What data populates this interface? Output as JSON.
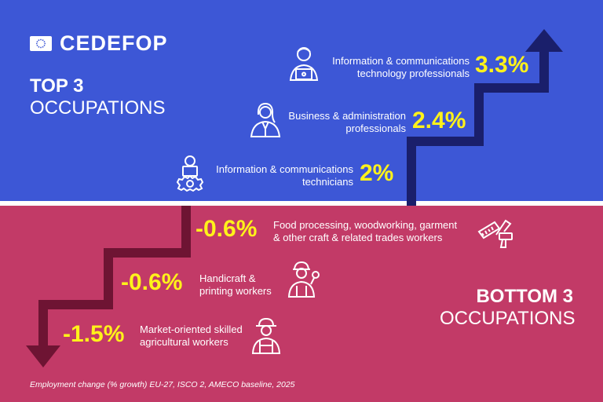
{
  "brand": {
    "name": "CEDEFOP",
    "flag_icon": "eu-flag-icon"
  },
  "top": {
    "title_bold": "TOP 3",
    "title_light": "OCCUPATIONS",
    "background": "#3d57d6",
    "items": [
      {
        "value": "3.3%",
        "label_line1": "Information & communications",
        "label_line2": "technology professionals",
        "icon": "ict-professional-icon"
      },
      {
        "value": "2.4%",
        "label_line1": "Business & administration",
        "label_line2": "professionals",
        "icon": "business-professional-icon"
      },
      {
        "value": "2%",
        "label_line1": "Information & communications",
        "label_line2": "technicians",
        "icon": "ict-technician-icon"
      }
    ]
  },
  "bottom": {
    "title_bold": "BOTTOM 3",
    "title_light": "OCCUPATIONS",
    "background": "#c23a67",
    "items": [
      {
        "value": "-0.6%",
        "label_line1": "Food processing, woodworking, garment",
        "label_line2": "& other craft & related trades workers",
        "icon": "craft-tools-icon"
      },
      {
        "value": "-0.6%",
        "label_line1": "Handicraft &",
        "label_line2": "printing workers",
        "icon": "handicraft-worker-icon"
      },
      {
        "value": "-1.5%",
        "label_line1": "Market-oriented skilled",
        "label_line2": "agricultural workers",
        "icon": "agricultural-worker-icon"
      }
    ]
  },
  "colors": {
    "up_arrow": "#1a1f6b",
    "down_arrow": "#6e1433",
    "value_highlight": "#fff21a"
  },
  "footnote": "Employment change (% growth) EU-27, ISCO 2, AMECO baseline, 2025"
}
